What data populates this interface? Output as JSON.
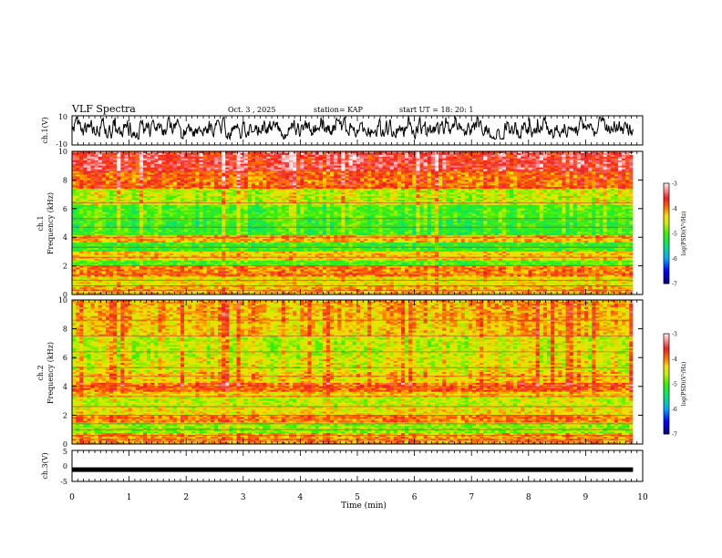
{
  "header": {
    "title": "VLF Spectra",
    "date": "Oct. 3 , 2025",
    "station": "station= KAP",
    "start": "start  UT =   18: 20: 1"
  },
  "chart_data": [
    {
      "id": "ch1-waveform",
      "type": "line",
      "ylabel": "ch.1(V)",
      "ylim": [
        -10,
        10
      ],
      "yticks": [
        "10",
        "-10"
      ],
      "xlim": [
        0,
        9.83
      ],
      "description_series": "noisy broadband voltage trace oscillating roughly between -5 and +8 V"
    },
    {
      "id": "ch1-spectrogram",
      "type": "heatmap",
      "ylabel": "ch.1\nFrequency (kHz)",
      "ylabel_line1": "ch.1",
      "ylabel_line2": "Frequency (kHz)",
      "ylim": [
        0,
        10
      ],
      "yticks": [
        "0",
        "2",
        "4",
        "6",
        "8",
        "10"
      ],
      "xlim": [
        0,
        9.83
      ],
      "colorbar": {
        "label": "log(PSD)(V²/Hz)",
        "range": [
          -7,
          -3
        ],
        "ticks": [
          "-3",
          "-4",
          "-5",
          "-6",
          "-7"
        ]
      },
      "bands": [
        {
          "from": 0.0,
          "to": 0.6,
          "level": -4.2
        },
        {
          "from": 0.6,
          "to": 1.3,
          "level": -4.4
        },
        {
          "from": 1.3,
          "to": 2.0,
          "level": -4.0
        },
        {
          "from": 2.0,
          "to": 2.4,
          "level": -5.0
        },
        {
          "from": 2.4,
          "to": 3.0,
          "level": -4.3
        },
        {
          "from": 3.0,
          "to": 3.6,
          "level": -5.1
        },
        {
          "from": 3.6,
          "to": 4.1,
          "level": -4.2
        },
        {
          "from": 4.1,
          "to": 5.2,
          "level": -5.1
        },
        {
          "from": 5.2,
          "to": 6.2,
          "level": -5.0
        },
        {
          "from": 6.2,
          "to": 7.4,
          "level": -4.6
        },
        {
          "from": 7.4,
          "to": 8.6,
          "level": -3.9
        },
        {
          "from": 8.6,
          "to": 10.0,
          "level": -3.5
        }
      ]
    },
    {
      "id": "ch2-spectrogram",
      "type": "heatmap",
      "ylabel_line1": "ch.2",
      "ylabel_line2": "Frequency (kHz)",
      "ylim": [
        0,
        10
      ],
      "yticks": [
        "0",
        "2",
        "4",
        "6",
        "8",
        "10"
      ],
      "xlim": [
        0,
        9.83
      ],
      "colorbar": {
        "label": "log(PSD)(V²/Hz)",
        "range": [
          -7,
          -3
        ],
        "ticks": [
          "-3",
          "-4",
          "-5",
          "-6",
          "-7"
        ]
      },
      "bands": [
        {
          "from": 0.0,
          "to": 0.8,
          "level": -4.1
        },
        {
          "from": 0.8,
          "to": 1.5,
          "level": -4.8
        },
        {
          "from": 1.5,
          "to": 2.0,
          "level": -4.0
        },
        {
          "from": 2.0,
          "to": 2.5,
          "level": -4.4
        },
        {
          "from": 2.5,
          "to": 3.2,
          "level": -4.6
        },
        {
          "from": 3.2,
          "to": 3.6,
          "level": -4.3
        },
        {
          "from": 3.6,
          "to": 4.3,
          "level": -3.9
        },
        {
          "from": 4.3,
          "to": 5.0,
          "level": -4.3
        },
        {
          "from": 5.0,
          "to": 6.0,
          "level": -4.5
        },
        {
          "from": 6.0,
          "to": 7.5,
          "level": -4.6
        },
        {
          "from": 7.5,
          "to": 8.5,
          "level": -4.3
        },
        {
          "from": 8.5,
          "to": 10.0,
          "level": -4.2
        }
      ]
    },
    {
      "id": "ch3-waveform",
      "type": "line",
      "ylabel": "ch.3(V)",
      "ylim": [
        -5,
        5
      ],
      "yticks": [
        "5",
        "0",
        "-5"
      ],
      "xlim": [
        0,
        9.83
      ],
      "level": -1.2
    }
  ],
  "xaxis": {
    "label": "Time (min)",
    "ticks": [
      "0",
      "1",
      "2",
      "3",
      "4",
      "5",
      "6",
      "7",
      "8",
      "9",
      "10"
    ],
    "range": [
      0,
      10
    ]
  }
}
